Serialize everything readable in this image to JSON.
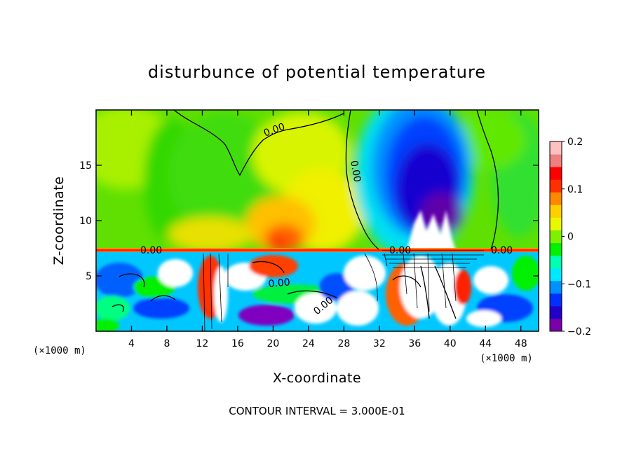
{
  "chart_data": {
    "type": "heatmap",
    "title": "disturbunce of potential temperature",
    "xlabel": "X-coordinate",
    "ylabel": "Z-coordinate",
    "x_unit": "(×1000 m)",
    "x_unit_right": "(×1000 m)",
    "xlim": [
      0,
      50
    ],
    "ylim": [
      0,
      20
    ],
    "x_ticks": [
      4,
      8,
      12,
      16,
      20,
      24,
      28,
      32,
      36,
      40,
      44,
      48
    ],
    "y_ticks": [
      5,
      10,
      15
    ],
    "colorbar": {
      "min": -0.2,
      "max": 0.2,
      "ticks": [
        {
          "value": 0.2,
          "label": "0.2"
        },
        {
          "value": 0.1,
          "label": "0.1"
        },
        {
          "value": 0,
          "label": "0"
        },
        {
          "value": -0.1,
          "label": "−0.1"
        },
        {
          "value": -0.2,
          "label": "−0.2"
        }
      ],
      "colors": [
        "#7a00a8",
        "#2200c8",
        "#0030ff",
        "#0090ff",
        "#00e8ff",
        "#00ffb0",
        "#00f000",
        "#80f000",
        "#e8f800",
        "#ffd000",
        "#ff8800",
        "#ff3000",
        "#ff0000",
        "#f08080",
        "#ffc0c0"
      ]
    },
    "contour_labels": [
      "0.00",
      "0.00",
      "0.00",
      "0.00",
      "0.00",
      "0.00",
      "0.00"
    ],
    "footer": "CONTOUR INTERVAL = 3.000E-01"
  }
}
